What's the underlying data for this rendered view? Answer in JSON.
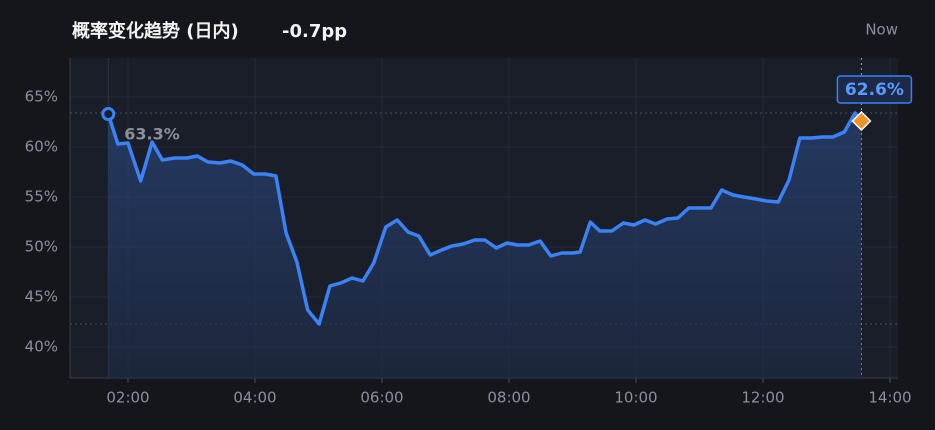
{
  "chart_data": {
    "type": "area-line",
    "title": "概率变化趋势 (日内)",
    "change": "-0.7pp",
    "now_label": "Now",
    "color": "#3b82f6",
    "marker_color": "#f0932b",
    "grid": true,
    "x": [
      1.69,
      1.84,
      2.0,
      2.2,
      2.38,
      2.54,
      2.74,
      2.93,
      3.09,
      3.26,
      3.45,
      3.62,
      3.8,
      3.98,
      4.16,
      4.33,
      4.49,
      4.66,
      4.83,
      5.01,
      5.18,
      5.35,
      5.53,
      5.7,
      5.87,
      6.06,
      6.24,
      6.41,
      6.58,
      6.76,
      6.94,
      7.1,
      7.28,
      7.46,
      7.62,
      7.8,
      7.97,
      8.14,
      8.31,
      8.49,
      8.66,
      8.83,
      9.01,
      9.12,
      9.28,
      9.43,
      9.62,
      9.8,
      9.97,
      10.14,
      10.31,
      10.49,
      10.66,
      10.83,
      11.01,
      11.18,
      11.35,
      11.53,
      11.7,
      11.89,
      12.06,
      12.24,
      12.41,
      12.58,
      12.76,
      12.93,
      13.1,
      13.28,
      13.45,
      13.55
    ],
    "values": [
      63.3,
      60.3,
      60.4,
      56.6,
      60.5,
      58.7,
      58.9,
      58.9,
      59.1,
      58.5,
      58.4,
      58.6,
      58.2,
      57.3,
      57.3,
      57.1,
      51.4,
      48.5,
      43.7,
      42.3,
      46.1,
      46.4,
      46.9,
      46.6,
      48.4,
      52.0,
      52.7,
      51.5,
      51.1,
      49.2,
      49.7,
      50.1,
      50.3,
      50.7,
      50.7,
      49.9,
      50.4,
      50.2,
      50.2,
      50.6,
      49.1,
      49.4,
      49.4,
      49.5,
      52.5,
      51.6,
      51.6,
      52.4,
      52.2,
      52.7,
      52.3,
      52.8,
      52.9,
      53.9,
      53.9,
      53.9,
      55.7,
      55.2,
      55.0,
      54.8,
      54.6,
      54.5,
      56.7,
      60.9,
      60.9,
      61.0,
      61.0,
      61.5,
      63.4,
      62.6
    ],
    "value_labels": [
      "63.3%",
      null,
      null,
      null,
      null,
      null,
      null,
      null,
      null,
      null,
      null,
      null,
      null,
      null,
      null,
      null,
      null,
      null,
      null,
      null,
      null,
      null,
      null,
      null,
      null,
      null,
      null,
      null,
      null,
      null,
      null,
      null,
      null,
      null,
      null,
      null,
      null,
      null,
      null,
      null,
      null,
      null,
      null,
      null,
      null,
      null,
      null,
      null,
      null,
      null,
      null,
      null,
      null,
      null,
      null,
      null,
      null,
      null,
      null,
      null,
      null,
      null,
      null,
      null,
      null,
      null,
      null,
      null,
      null,
      "62.6%"
    ],
    "xlim": [
      1.087,
      14.126
    ],
    "ylim": [
      36.9,
      68.9
    ],
    "xticks": [
      {
        "value": 2,
        "label": "02:00"
      },
      {
        "value": 4,
        "label": "04:00"
      },
      {
        "value": 6,
        "label": "06:00"
      },
      {
        "value": 8,
        "label": "08:00"
      },
      {
        "value": 10,
        "label": "10:00"
      },
      {
        "value": 12,
        "label": "12:00"
      },
      {
        "value": 14,
        "label": "14:00"
      }
    ],
    "yticks": [
      {
        "value": 40,
        "label": "40%"
      },
      {
        "value": 45,
        "label": "45%"
      },
      {
        "value": 50,
        "label": "50%"
      },
      {
        "value": 55,
        "label": "55%"
      },
      {
        "value": 60,
        "label": "60%"
      },
      {
        "value": 65,
        "label": "65%"
      }
    ]
  }
}
